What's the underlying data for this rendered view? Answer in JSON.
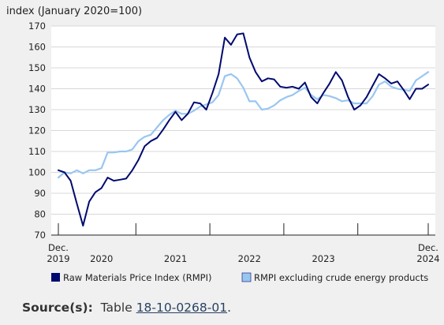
{
  "chart_data": {
    "type": "line",
    "ylabel": "index (January 2020=100)",
    "ylim": [
      70,
      170
    ],
    "yticks": [
      70,
      80,
      90,
      100,
      110,
      120,
      130,
      140,
      150,
      160,
      170
    ],
    "x_start": "2019-12",
    "x_end": "2024-12",
    "x_tick_labels": [
      {
        "month": "2019-12",
        "line1": "Dec.",
        "line2": "2019"
      },
      {
        "month": "2020-07",
        "line1": "",
        "line2": "2020"
      },
      {
        "month": "2021-07",
        "line1": "",
        "line2": "2021"
      },
      {
        "month": "2022-07",
        "line1": "",
        "line2": "2022"
      },
      {
        "month": "2023-07",
        "line1": "",
        "line2": "2023"
      },
      {
        "month": "2024-12",
        "line1": "Dec.",
        "line2": "2024"
      }
    ],
    "year_separators": [
      "2020-12",
      "2021-12",
      "2022-12",
      "2023-12"
    ],
    "grid": "horizontal",
    "legend_position": "bottom",
    "series": [
      {
        "name": "Raw Materials Price Index (RMPI)",
        "color": "#000a6e",
        "values": [
          101,
          100,
          96,
          85,
          74.5,
          86,
          90.5,
          92.5,
          97.5,
          96,
          96.5,
          97,
          101,
          106,
          112.5,
          115,
          116.5,
          120.5,
          125,
          129,
          125,
          128,
          133.5,
          133,
          130,
          138,
          147,
          164.5,
          161,
          166,
          166.5,
          155,
          148,
          143.5,
          145,
          144.5,
          141,
          140.5,
          141,
          140,
          143,
          136,
          133,
          138,
          142.5,
          148,
          144,
          136,
          130,
          132,
          136,
          141.5,
          147,
          145,
          142.5,
          143.5,
          139.5,
          135,
          140,
          140,
          142
        ]
      },
      {
        "name": "RMPI excluding crude energy products",
        "color": "#99c6f0",
        "values": [
          97.5,
          100,
          99.5,
          101,
          99.5,
          101,
          101,
          102,
          109.5,
          109.5,
          110,
          110,
          111,
          115,
          117,
          118,
          121.5,
          125,
          127.5,
          129.5,
          128,
          128,
          129.5,
          131.5,
          132.5,
          133.5,
          137,
          146,
          147,
          145,
          140.5,
          134,
          134,
          130,
          130.5,
          132,
          134.5,
          136,
          137,
          139,
          140.5,
          137,
          135,
          137,
          136.5,
          135.5,
          134,
          134.5,
          133,
          133,
          133,
          136.5,
          142,
          143.5,
          141,
          140,
          139.5,
          139,
          144,
          146,
          148
        ]
      }
    ]
  },
  "source": {
    "label": "Source(s):",
    "text": "Table",
    "link": "18-10-0268-01",
    "end": "."
  }
}
